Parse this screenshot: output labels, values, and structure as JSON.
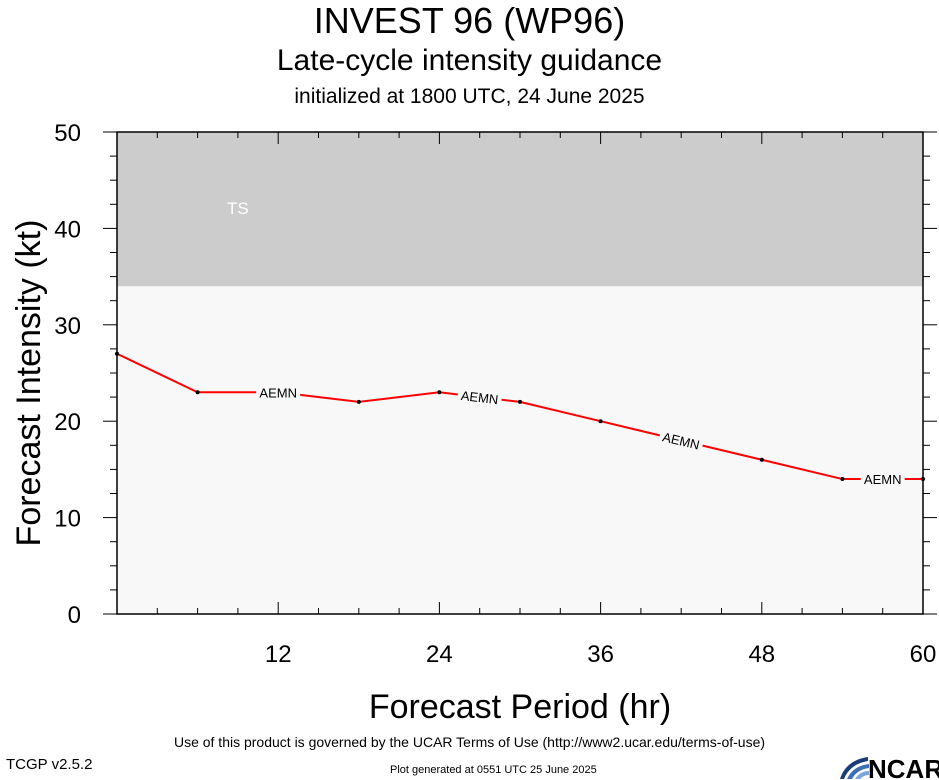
{
  "header": {
    "title": "INVEST 96 (WP96)",
    "subtitle": "Late-cycle intensity guidance",
    "initialized": "initialized at 1800 UTC, 24 June 2025"
  },
  "chart_data": {
    "type": "line",
    "xlabel": "Forecast Period (hr)",
    "ylabel": "Forecast Intensity (kt)",
    "xlim": [
      0,
      60
    ],
    "ylim": [
      0,
      50
    ],
    "x_ticks": [
      12,
      24,
      36,
      48,
      60
    ],
    "y_ticks": [
      0,
      10,
      20,
      30,
      40,
      50
    ],
    "grid": false,
    "bands": [
      {
        "label": "TS",
        "from": 34,
        "to": 50,
        "color": "#cccccc"
      }
    ],
    "below_band_color": "#f8f8f8",
    "series": [
      {
        "name": "AEMN",
        "color": "#ff0000",
        "x": [
          0,
          6,
          12,
          18,
          24,
          30,
          36,
          42,
          48,
          54,
          60
        ],
        "y": [
          27,
          23,
          23,
          22,
          23,
          22,
          20,
          18,
          16,
          14,
          14
        ],
        "label_positions": [
          12,
          27,
          42,
          57
        ]
      }
    ]
  },
  "footer": {
    "terms": "Use of this product is governed by the UCAR Terms of Use (http://www2.ucar.edu/terms-of-use)",
    "version": "TCGP v2.5.2",
    "generated": "Plot generated at 0551 UTC   25 June 2025",
    "logo_text": "NCAR"
  }
}
